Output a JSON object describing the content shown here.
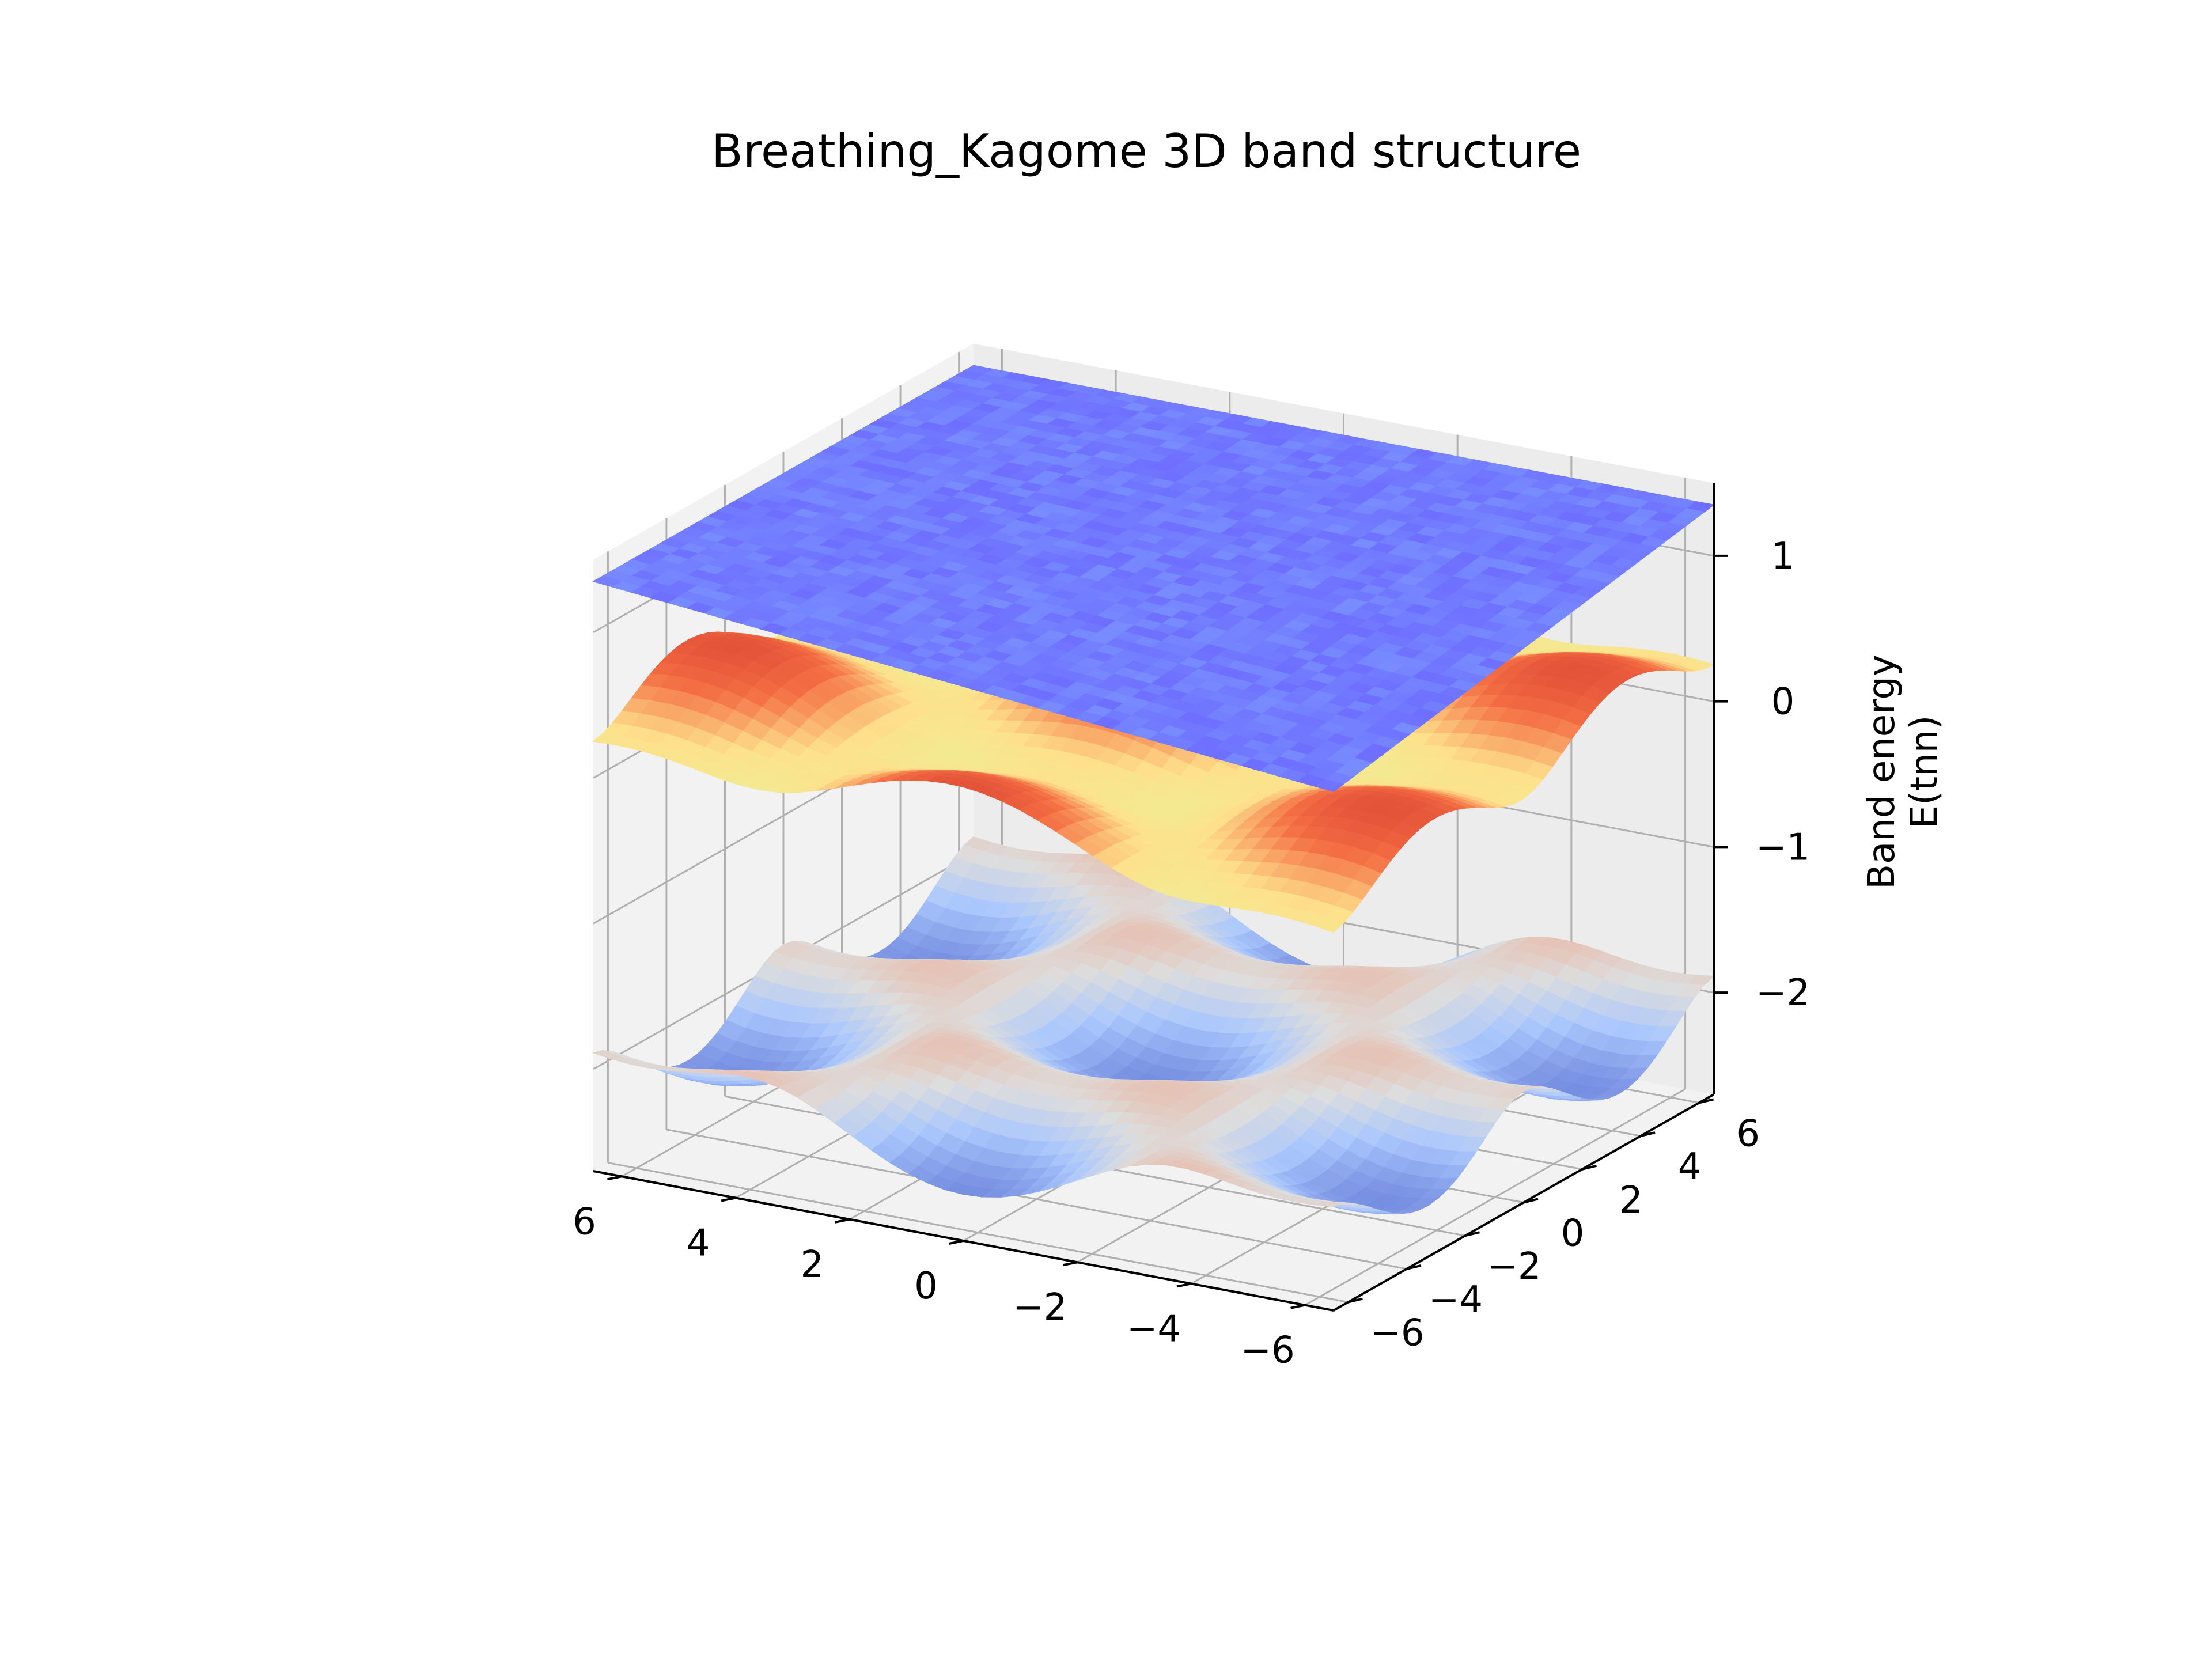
{
  "chart_data": {
    "type": "surface3d",
    "title": "Breathing_Kagome 3D band structure",
    "xlabel": "",
    "ylabel": "",
    "zlabel_lines": [
      "Band energy",
      "E(tnn)"
    ],
    "x_ticks": [
      6,
      4,
      2,
      0,
      -2,
      -4,
      -6
    ],
    "x_tick_labels": [
      "6",
      "4",
      "2",
      "0",
      "−2",
      "−4",
      "−6"
    ],
    "y_ticks": [
      6,
      4,
      2,
      0,
      -2,
      -4,
      -6
    ],
    "y_tick_labels": [
      "6",
      "4",
      "2",
      "0",
      "−2",
      "−4",
      "−6"
    ],
    "z_ticks": [
      1,
      0,
      -1,
      -2
    ],
    "z_tick_labels": [
      "1",
      "0",
      "−1",
      "−2"
    ],
    "xlim": [
      -6.5,
      6.5
    ],
    "ylim": [
      -6.5,
      6.5
    ],
    "zlim": [
      -2.7,
      1.5
    ],
    "grid": true,
    "series": [
      {
        "band": "flat",
        "level": 1.35,
        "colormap": "cool"
      },
      {
        "band": "upper-dispersive",
        "range": [
          -0.2,
          0.8
        ],
        "colormap": "Spectral"
      },
      {
        "band": "lower-dispersive",
        "range": [
          -2.6,
          -1.3
        ],
        "colormap": "coolwarm"
      }
    ]
  }
}
